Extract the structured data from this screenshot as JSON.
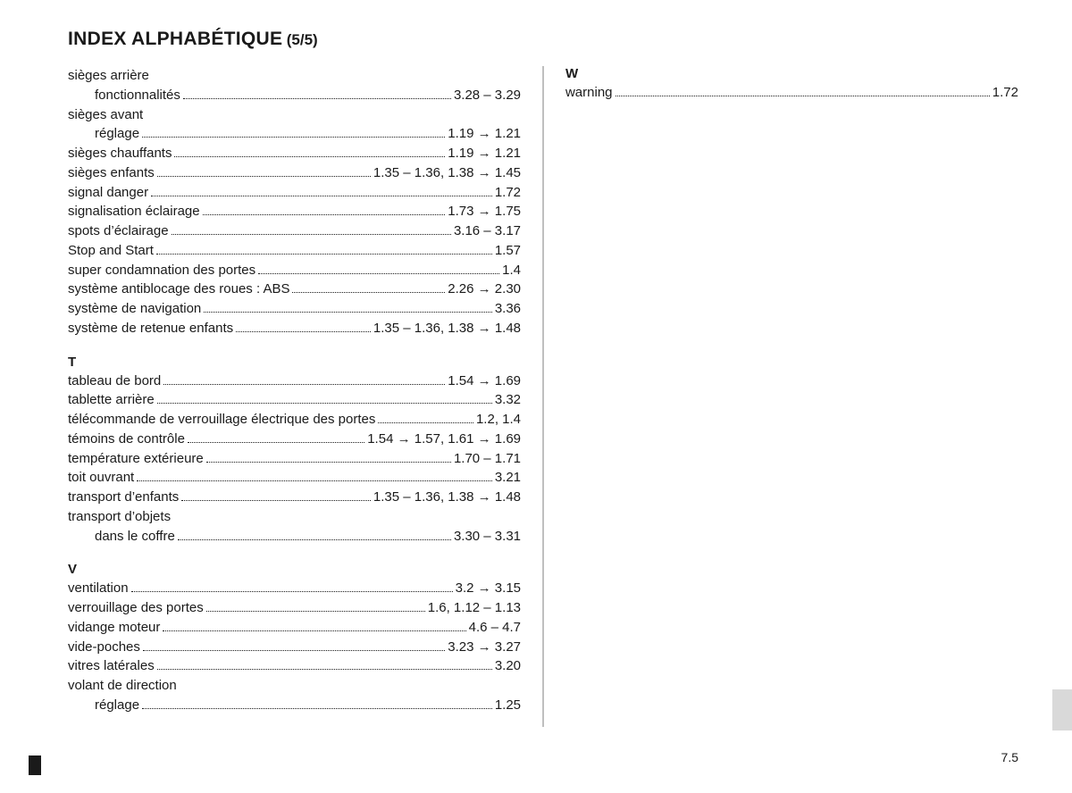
{
  "title_main": "INDEX ALPHABÉTIQUE",
  "title_sub": "(5/5)",
  "page_number": "7.5",
  "columns": {
    "left": [
      {
        "type": "entry",
        "label": "sièges arrière",
        "pages": ""
      },
      {
        "type": "entry",
        "sub": true,
        "label": "fonctionnalités",
        "pages": "3.28 – 3.29"
      },
      {
        "type": "entry",
        "label": "sièges avant",
        "pages": ""
      },
      {
        "type": "entry",
        "sub": true,
        "label": "réglage",
        "pages": "1.19 → 1.21"
      },
      {
        "type": "entry",
        "label": "sièges chauffants",
        "pages": "1.19 → 1.21"
      },
      {
        "type": "entry",
        "label": "sièges enfants",
        "pages": "1.35 – 1.36, 1.38 → 1.45"
      },
      {
        "type": "entry",
        "label": "signal danger",
        "pages": "1.72"
      },
      {
        "type": "entry",
        "label": "signalisation éclairage",
        "pages": "1.73 → 1.75"
      },
      {
        "type": "entry",
        "label": "spots d’éclairage",
        "pages": "3.16 – 3.17"
      },
      {
        "type": "entry",
        "label": "Stop and Start",
        "pages": "1.57"
      },
      {
        "type": "entry",
        "label": "super condamnation des portes",
        "pages": "1.4"
      },
      {
        "type": "entry",
        "label": "système antiblocage des roues : ABS",
        "pages": "2.26 → 2.30"
      },
      {
        "type": "entry",
        "label": "système de navigation",
        "pages": "3.36"
      },
      {
        "type": "entry",
        "label": "système de retenue enfants",
        "pages": "1.35 – 1.36, 1.38 → 1.48"
      },
      {
        "type": "head",
        "label": "T"
      },
      {
        "type": "entry",
        "label": "tableau de bord",
        "pages": "1.54 → 1.69"
      },
      {
        "type": "entry",
        "label": "tablette arrière",
        "pages": "3.32"
      },
      {
        "type": "entry",
        "label": "télécommande de verrouillage électrique des portes",
        "pages": "1.2, 1.4"
      },
      {
        "type": "entry",
        "label": "témoins de contrôle",
        "pages": "1.54 → 1.57, 1.61 → 1.69"
      },
      {
        "type": "entry",
        "label": "température extérieure",
        "pages": "1.70 – 1.71"
      },
      {
        "type": "entry",
        "label": "toit ouvrant",
        "pages": "3.21"
      },
      {
        "type": "entry",
        "label": "transport d’enfants",
        "pages": "1.35 – 1.36, 1.38 → 1.48"
      },
      {
        "type": "entry",
        "label": "transport d’objets",
        "pages": ""
      },
      {
        "type": "entry",
        "sub": true,
        "label": "dans le coffre",
        "pages": "3.30 – 3.31"
      },
      {
        "type": "head",
        "label": "V"
      },
      {
        "type": "entry",
        "label": "ventilation",
        "pages": "3.2 → 3.15"
      },
      {
        "type": "entry",
        "label": "verrouillage des portes",
        "pages": "1.6, 1.12 – 1.13"
      },
      {
        "type": "entry",
        "label": "vidange moteur",
        "pages": "4.6 – 4.7"
      },
      {
        "type": "entry",
        "label": "vide-poches",
        "pages": "3.23 → 3.27"
      },
      {
        "type": "entry",
        "label": "vitres latérales",
        "pages": "3.20"
      },
      {
        "type": "entry",
        "label": "volant de direction",
        "pages": ""
      },
      {
        "type": "entry",
        "sub": true,
        "label": "réglage",
        "pages": "1.25"
      }
    ],
    "right": [
      {
        "type": "head",
        "label": "W",
        "nomargin": true
      },
      {
        "type": "entry",
        "label": "warning",
        "pages": "1.72"
      }
    ]
  }
}
